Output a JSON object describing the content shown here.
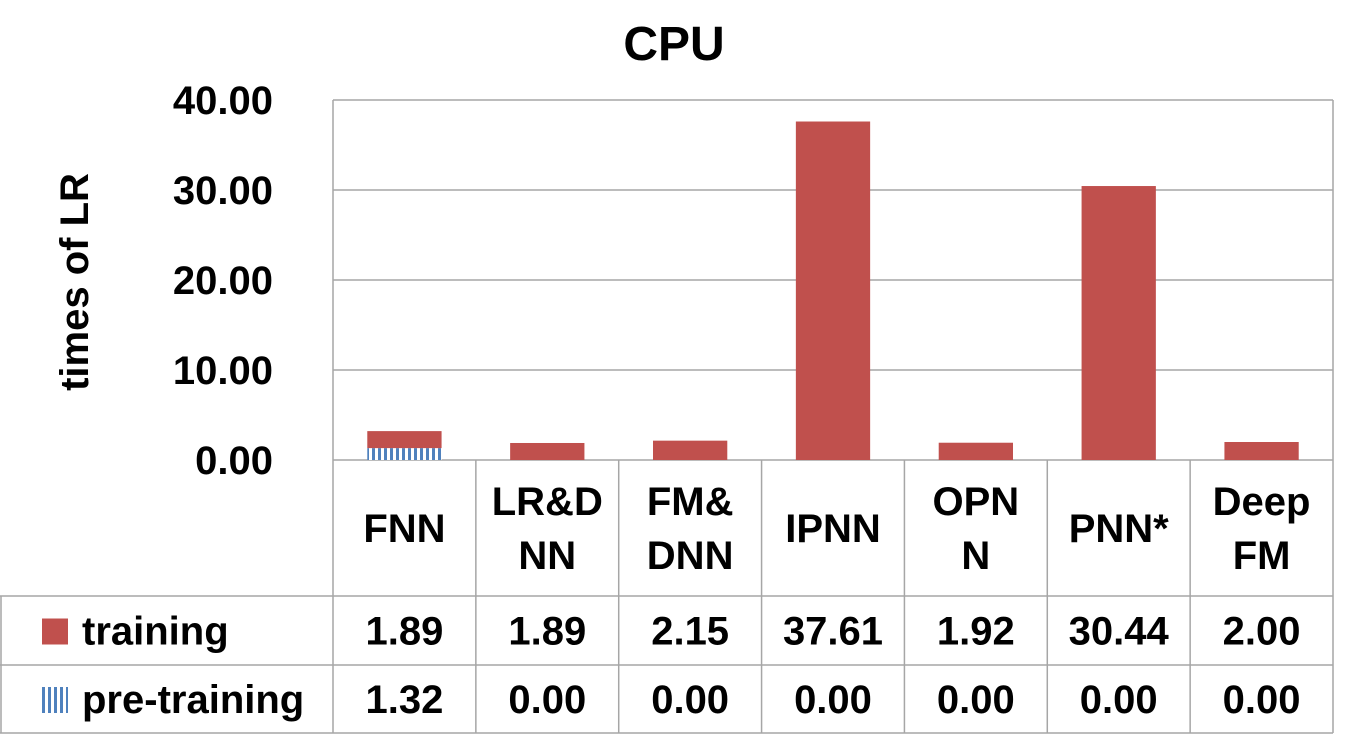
{
  "chart_data": {
    "type": "bar",
    "title": "CPU",
    "ylabel": "times of LR",
    "xlabel": "",
    "ylim": [
      0,
      40
    ],
    "yticks": [
      "0.00",
      "10.00",
      "20.00",
      "30.00",
      "40.00"
    ],
    "categories": [
      [
        "FNN"
      ],
      [
        "LR&D",
        "NN"
      ],
      [
        "FM&",
        "DNN"
      ],
      [
        "IPNN"
      ],
      [
        "OPN",
        "N"
      ],
      [
        "PNN*"
      ],
      [
        "Deep",
        "FM"
      ]
    ],
    "stacked": true,
    "grid": true,
    "legend_placement": "data-table",
    "series": [
      {
        "name": "pre-training",
        "values": [
          1.32,
          0.0,
          0.0,
          0.0,
          0.0,
          0.0,
          0.0
        ],
        "labels": [
          "1.32",
          "0.00",
          "0.00",
          "0.00",
          "0.00",
          "0.00",
          "0.00"
        ],
        "color": "#4f81bd",
        "pattern": "vertical-stripes"
      },
      {
        "name": "training",
        "values": [
          1.89,
          1.89,
          2.15,
          37.61,
          1.92,
          30.44,
          2.0
        ],
        "labels": [
          "1.89",
          "1.89",
          "2.15",
          "37.61",
          "1.92",
          "30.44",
          "2.00"
        ],
        "color": "#c0504d",
        "pattern": "solid"
      }
    ],
    "table_rows": [
      "training",
      "pre-training"
    ]
  }
}
